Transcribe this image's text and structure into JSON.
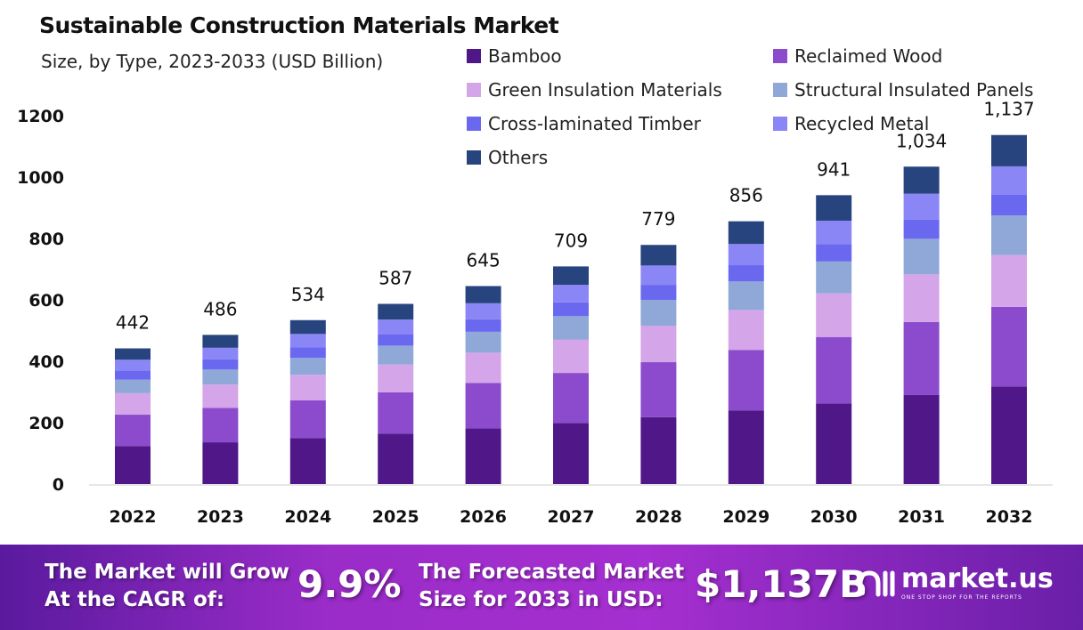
{
  "chart_data": {
    "type": "bar",
    "stacked": true,
    "title": "Sustainable Construction Materials Market",
    "subtitle": "Size, by Type, 2023-2033 (USD Billion)",
    "xlabel": "",
    "ylabel": "",
    "ylim": [
      0,
      1200
    ],
    "yticks": [
      "0",
      "200",
      "400",
      "600",
      "800",
      "1000",
      "1200"
    ],
    "grid": false,
    "legend_position": "top-right",
    "categories": [
      "2022",
      "2023",
      "2024",
      "2025",
      "2026",
      "2027",
      "2028",
      "2029",
      "2030",
      "2031",
      "2032"
    ],
    "totals": [
      442,
      486,
      534,
      587,
      645,
      709,
      779,
      856,
      941,
      1034,
      1137
    ],
    "total_labels": [
      "442",
      "486",
      "534",
      "587",
      "645",
      "709",
      "779",
      "856",
      "941",
      "1,034",
      "1,137"
    ],
    "series": [
      {
        "name": "Bamboo",
        "color": "#4f1787",
        "values": [
          124,
          136,
          150,
          164,
          181,
          199,
          218,
          240,
          263,
          290,
          318
        ]
      },
      {
        "name": "Reclaimed Wood",
        "color": "#8b4bcc",
        "values": [
          102,
          112,
          123,
          135,
          148,
          163,
          179,
          197,
          216,
          238,
          259
        ]
      },
      {
        "name": "Green Insulation Materials",
        "color": "#d4a5e8",
        "values": [
          70,
          76,
          83,
          91,
          99,
          109,
          119,
          130,
          142,
          155,
          169
        ]
      },
      {
        "name": "Structural Insulated Panels",
        "color": "#8fa8d8",
        "values": [
          44,
          49,
          55,
          61,
          68,
          76,
          84,
          93,
          104,
          116,
          129
        ]
      },
      {
        "name": "Cross-laminated Timber",
        "color": "#6b68f0",
        "values": [
          30,
          33,
          35,
          38,
          41,
          45,
          49,
          53,
          57,
          62,
          67
        ]
      },
      {
        "name": "Recycled Metal",
        "color": "#8a86f5",
        "values": [
          35,
          38,
          43,
          47,
          52,
          57,
          63,
          69,
          76,
          85,
          93
        ]
      },
      {
        "name": "Others",
        "color": "#27447f",
        "values": [
          37,
          42,
          45,
          51,
          56,
          60,
          67,
          74,
          83,
          88,
          102
        ]
      }
    ]
  },
  "footer": {
    "cagr_text_1": "The Market will Grow",
    "cagr_text_2": "At the CAGR of:",
    "cagr_value": "9.9%",
    "forecast_text_1": "The Forecasted Market",
    "forecast_text_2": "Size for 2033 in USD:",
    "forecast_value": "$1,137B",
    "logo_name": "market.us",
    "logo_tagline": "ONE STOP SHOP FOR THE REPORTS"
  }
}
